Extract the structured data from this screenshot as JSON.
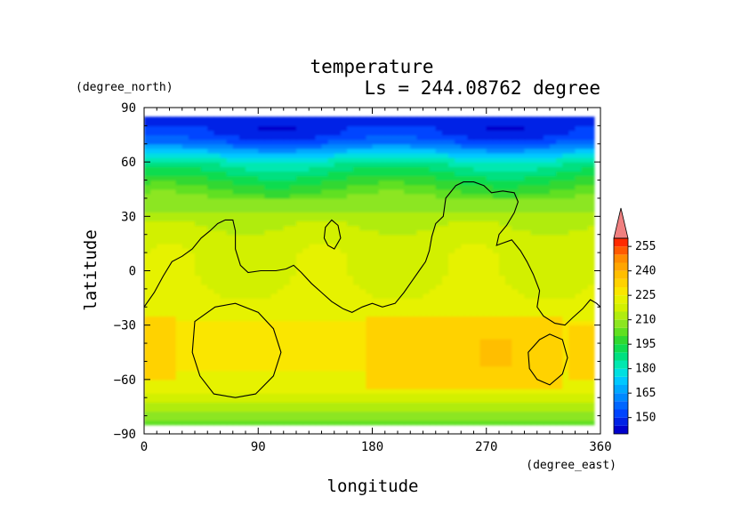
{
  "chart_data": {
    "type": "heatmap",
    "title": "temperature",
    "subtitle": "Ls = 244.08762 degree",
    "xlabel": "longitude",
    "ylabel": "latitude",
    "x_units": "(degree_east)",
    "y_units": "(degree_north)",
    "xlim": [
      0,
      360
    ],
    "ylim": [
      -90,
      90
    ],
    "data_extent": {
      "lon": [
        0,
        355
      ],
      "lat": [
        -85,
        85
      ]
    },
    "x_ticks": [
      0,
      90,
      180,
      270,
      360
    ],
    "y_ticks": [
      90,
      60,
      30,
      0,
      -30,
      -60,
      -90
    ],
    "x_tick_labels": [
      "0",
      "90",
      "180",
      "270",
      "360"
    ],
    "y_tick_labels": [
      "90",
      "60",
      "30",
      "0",
      "−30",
      "−60",
      "−90"
    ],
    "zonal_profile": {
      "lat": [
        -85,
        -80,
        -75,
        -70,
        -65,
        -60,
        -50,
        -40,
        -30,
        -20,
        -10,
        0,
        10,
        20,
        30,
        40,
        45,
        50,
        55,
        60,
        65,
        70,
        75,
        80,
        85
      ],
      "value": [
        202,
        206,
        212,
        218,
        222,
        224,
        226,
        227,
        226,
        223,
        220,
        219,
        219,
        217,
        212,
        205,
        200,
        195,
        189,
        184,
        172,
        158,
        150,
        148,
        147
      ]
    },
    "warm_regions": [
      {
        "lon": [
          175,
          330
        ],
        "lat": [
          -65,
          -25
        ],
        "value": 233
      },
      {
        "lon": [
          265,
          290
        ],
        "lat": [
          -52,
          -38
        ],
        "value": 237
      },
      {
        "lon": [
          0,
          25
        ],
        "lat": [
          -60,
          -25
        ],
        "value": 231
      },
      {
        "lon": [
          335,
          355
        ],
        "lat": [
          -60,
          -30
        ],
        "value": 231
      }
    ],
    "contour_lines": [
      {
        "level": 0,
        "points": [
          [
            0,
            -20
          ],
          [
            8,
            -12
          ],
          [
            15,
            -3
          ],
          [
            22,
            5
          ],
          [
            30,
            8
          ],
          [
            38,
            12
          ],
          [
            45,
            18
          ],
          [
            52,
            22
          ],
          [
            58,
            26
          ],
          [
            64,
            28
          ],
          [
            70,
            28
          ],
          [
            72,
            22
          ],
          [
            72,
            12
          ],
          [
            76,
            3
          ],
          [
            82,
            -1
          ],
          [
            92,
            0
          ],
          [
            104,
            0
          ],
          [
            112,
            1
          ],
          [
            118,
            3
          ],
          [
            124,
            -1
          ],
          [
            132,
            -7
          ],
          [
            140,
            -12
          ],
          [
            148,
            -17
          ],
          [
            157,
            -21
          ],
          [
            164,
            -23
          ],
          [
            172,
            -20
          ],
          [
            180,
            -18
          ],
          [
            188,
            -20
          ],
          [
            198,
            -18
          ],
          [
            205,
            -12
          ],
          [
            212,
            -5
          ],
          [
            218,
            1
          ],
          [
            222,
            5
          ],
          [
            225,
            11
          ],
          [
            227,
            19
          ],
          [
            230,
            26
          ],
          [
            236,
            30
          ],
          [
            238,
            40
          ],
          [
            246,
            47
          ],
          [
            252,
            49
          ],
          [
            260,
            49
          ],
          [
            268,
            47
          ],
          [
            274,
            43
          ],
          [
            283,
            44
          ],
          [
            292,
            43
          ],
          [
            295,
            38
          ],
          [
            292,
            32
          ],
          [
            286,
            25
          ],
          [
            280,
            20
          ],
          [
            278,
            14
          ],
          [
            282,
            15
          ],
          [
            290,
            17
          ],
          [
            297,
            11
          ],
          [
            302,
            5
          ],
          [
            307,
            -2
          ],
          [
            312,
            -11
          ],
          [
            310,
            -20
          ],
          [
            315,
            -25
          ],
          [
            324,
            -29
          ],
          [
            332,
            -30
          ],
          [
            338,
            -26
          ],
          [
            346,
            -21
          ],
          [
            352,
            -16
          ],
          [
            357,
            -18
          ],
          [
            360,
            -20
          ]
        ]
      },
      {
        "level": 0,
        "closed": true,
        "points": [
          [
            143,
            24
          ],
          [
            148,
            28
          ],
          [
            153,
            25
          ],
          [
            155,
            18
          ],
          [
            150,
            12
          ],
          [
            145,
            14
          ],
          [
            142,
            18
          ],
          [
            143,
            24
          ]
        ]
      },
      {
        "level": 0,
        "closed": true,
        "points": [
          [
            40,
            -28
          ],
          [
            56,
            -20
          ],
          [
            72,
            -18
          ],
          [
            90,
            -23
          ],
          [
            102,
            -32
          ],
          [
            108,
            -45
          ],
          [
            102,
            -58
          ],
          [
            88,
            -68
          ],
          [
            72,
            -70
          ],
          [
            55,
            -68
          ],
          [
            44,
            -58
          ],
          [
            38,
            -45
          ],
          [
            40,
            -28
          ]
        ]
      },
      {
        "level": 0,
        "closed": true,
        "points": [
          [
            303,
            -45
          ],
          [
            312,
            -38
          ],
          [
            320,
            -35
          ],
          [
            330,
            -38
          ],
          [
            334,
            -48
          ],
          [
            330,
            -57
          ],
          [
            320,
            -63
          ],
          [
            310,
            -60
          ],
          [
            304,
            -54
          ],
          [
            303,
            -45
          ]
        ]
      }
    ],
    "colorbar": {
      "ticks": [
        150,
        165,
        180,
        195,
        210,
        225,
        240,
        255
      ],
      "levels": [
        140,
        145,
        150,
        155,
        160,
        165,
        170,
        175,
        180,
        185,
        190,
        195,
        200,
        205,
        210,
        215,
        220,
        225,
        230,
        235,
        240,
        245,
        250,
        255,
        260
      ],
      "colors": [
        "#0000cc",
        "#0022e6",
        "#0044ff",
        "#0066ff",
        "#0088ff",
        "#00a8ff",
        "#00c8ff",
        "#00e0e0",
        "#00e8b0",
        "#00e080",
        "#10dc50",
        "#30d830",
        "#60e020",
        "#8ce620",
        "#b0ec10",
        "#d2f000",
        "#e6f200",
        "#fae600",
        "#ffd200",
        "#ffbe00",
        "#ffa500",
        "#ff8c00",
        "#ff5a00",
        "#ff2a00"
      ],
      "extend_color": "#f08080"
    }
  }
}
